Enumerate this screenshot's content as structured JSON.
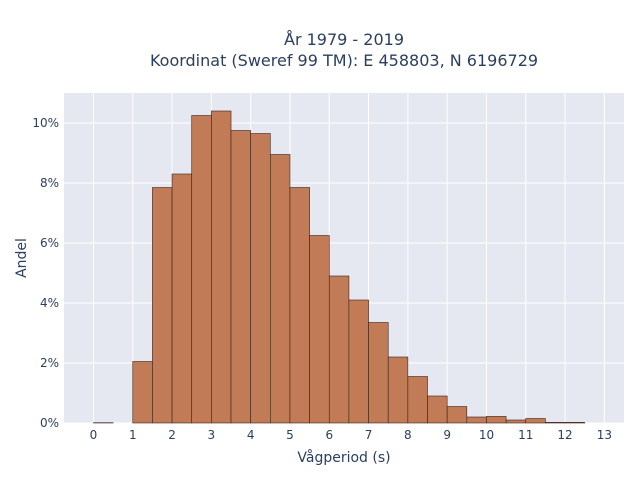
{
  "chart_data": {
    "type": "bar",
    "title_lines": [
      "År 1979 - 2019",
      "Koordinat (Sweref 99 TM): E 458803, N 6196729"
    ],
    "xlabel": "Vågperiod (s)",
    "ylabel": "Andel",
    "bin_width": 0.5,
    "bin_start": 0,
    "bins": [
      {
        "x": 0.0,
        "value": 0.01
      },
      {
        "x": 0.5,
        "value": 0.0
      },
      {
        "x": 1.0,
        "value": 2.05
      },
      {
        "x": 1.5,
        "value": 7.85
      },
      {
        "x": 2.0,
        "value": 8.3
      },
      {
        "x": 2.5,
        "value": 10.25
      },
      {
        "x": 3.0,
        "value": 10.4
      },
      {
        "x": 3.5,
        "value": 9.75
      },
      {
        "x": 4.0,
        "value": 9.65
      },
      {
        "x": 4.5,
        "value": 8.95
      },
      {
        "x": 5.0,
        "value": 7.85
      },
      {
        "x": 5.5,
        "value": 6.25
      },
      {
        "x": 6.0,
        "value": 4.9
      },
      {
        "x": 6.5,
        "value": 4.1
      },
      {
        "x": 7.0,
        "value": 3.35
      },
      {
        "x": 7.5,
        "value": 2.2
      },
      {
        "x": 8.0,
        "value": 1.55
      },
      {
        "x": 8.5,
        "value": 0.9
      },
      {
        "x": 9.0,
        "value": 0.55
      },
      {
        "x": 9.5,
        "value": 0.2
      },
      {
        "x": 10.0,
        "value": 0.22
      },
      {
        "x": 10.5,
        "value": 0.1
      },
      {
        "x": 11.0,
        "value": 0.15
      },
      {
        "x": 11.5,
        "value": 0.02
      },
      {
        "x": 12.0,
        "value": 0.02
      },
      {
        "x": 12.5,
        "value": 0.0
      }
    ],
    "xlim": [
      -0.75,
      13.5
    ],
    "ylim": [
      0,
      11
    ],
    "x_ticks": [
      "0",
      "1",
      "2",
      "3",
      "4",
      "5",
      "6",
      "7",
      "8",
      "9",
      "10",
      "11",
      "12",
      "13"
    ],
    "y_ticks": [
      {
        "value": 0,
        "label": "0%"
      },
      {
        "value": 2,
        "label": "2%"
      },
      {
        "value": 4,
        "label": "4%"
      },
      {
        "value": 6,
        "label": "6%"
      },
      {
        "value": 8,
        "label": "8%"
      },
      {
        "value": 10,
        "label": "10%"
      }
    ],
    "grid": true,
    "colors": {
      "bar_fill": "#c17c57",
      "bar_stroke": "#3b2318",
      "plot_bg": "#e5e8f1",
      "grid": "#ffffff",
      "text": "#2a3f5f"
    }
  }
}
